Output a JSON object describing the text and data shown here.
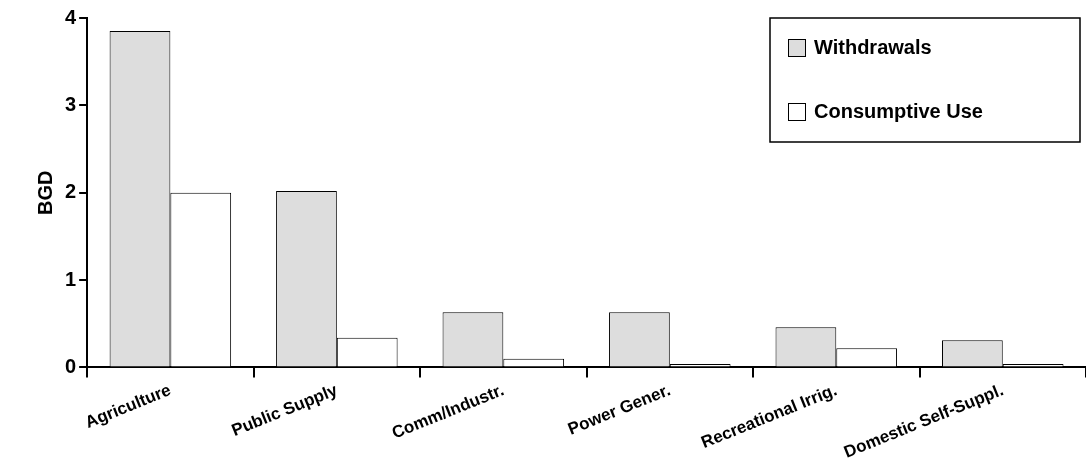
{
  "chart_data": {
    "type": "bar",
    "ylabel": "BGD",
    "categories": [
      "Agriculture",
      "Public Supply",
      "Comm/Industr.",
      "Power Gener.",
      "Recreational Irrig.",
      "Domestic Self-Suppl."
    ],
    "series": [
      {
        "name": "Withdrawals",
        "color": "#dddddd",
        "values": [
          3.85,
          2.02,
          0.63,
          0.63,
          0.46,
          0.31
        ]
      },
      {
        "name": "Consumptive Use",
        "color": "#ffffff",
        "values": [
          2.0,
          0.34,
          0.1,
          0.04,
          0.22,
          0.04
        ]
      }
    ],
    "ylim": [
      0,
      4
    ],
    "yticks": [
      0,
      1,
      2,
      3,
      4
    ],
    "grid": false,
    "legend": "top right"
  }
}
